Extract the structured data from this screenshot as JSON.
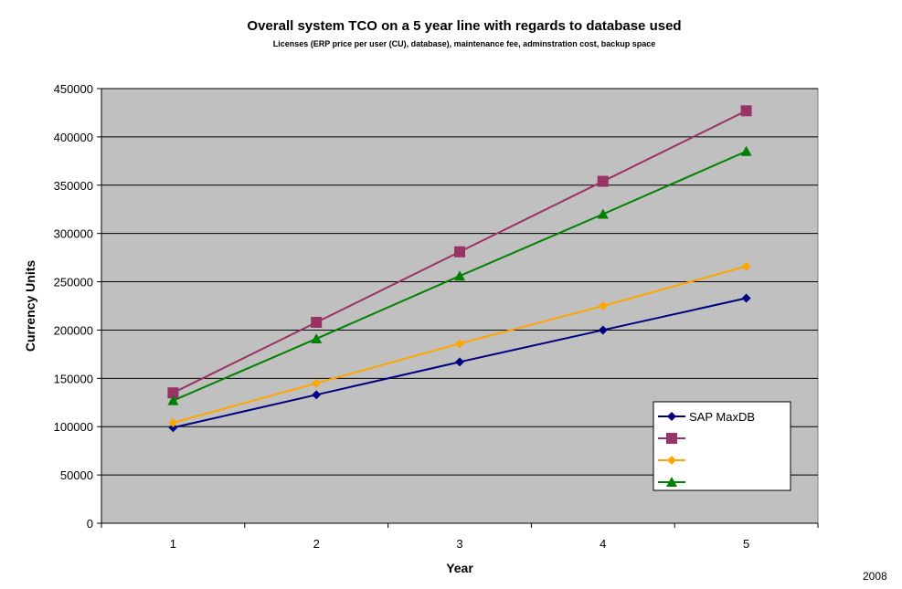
{
  "chart_data": {
    "type": "line",
    "title": "Overall system TCO on a 5 year line with regards to database used",
    "subtitle": "Licenses (ERP price per user (CU), database), maintenance fee, adminstration cost, backup space",
    "xlabel": "Year",
    "ylabel": "Currency Units",
    "categories": [
      "1",
      "2",
      "3",
      "4",
      "5"
    ],
    "ylim": [
      0,
      450000
    ],
    "yticks": [
      0,
      50000,
      100000,
      150000,
      200000,
      250000,
      300000,
      350000,
      400000,
      450000
    ],
    "ytick_labels": [
      "0",
      "50000",
      "100000",
      "150000",
      "200000",
      "250000",
      "300000",
      "350000",
      "400000",
      "450000"
    ],
    "grid": true,
    "legend_position": "bottom-right",
    "plot_background": "#c0c0c0",
    "series": [
      {
        "name": "SAP MaxDB",
        "color": "#000080",
        "marker": "diamond",
        "values": [
          99000,
          133000,
          167000,
          200000,
          233000
        ]
      },
      {
        "color": "#993366",
        "marker": "square",
        "values": [
          135000,
          208000,
          281000,
          354000,
          427000
        ]
      },
      {
        "color": "#ffa500",
        "marker": "diamond",
        "values": [
          104000,
          145000,
          186000,
          225000,
          266000
        ]
      },
      {
        "color": "#008000",
        "marker": "triangle",
        "values": [
          127000,
          191000,
          256000,
          320000,
          385000
        ]
      }
    ]
  },
  "footer": {
    "year_note": "2008"
  }
}
